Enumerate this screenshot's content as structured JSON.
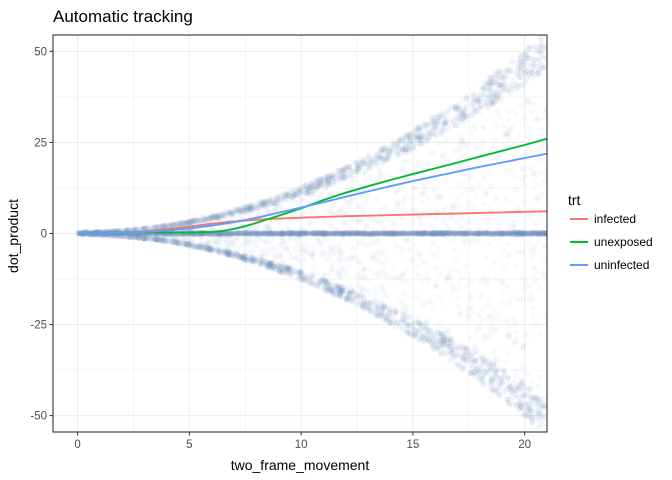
{
  "chart_data": {
    "type": "scatter",
    "title": "Automatic tracking",
    "xlabel": "two_frame_movement",
    "ylabel": "dot_product",
    "xlim": [
      -1.1,
      21
    ],
    "ylim": [
      -54.5,
      54.5
    ],
    "x_ticks": [
      0,
      5,
      10,
      15,
      20
    ],
    "y_ticks": [
      -50,
      -25,
      0,
      25,
      50
    ],
    "x_tick_labels": [
      "0",
      "5",
      "10",
      "15",
      "20"
    ],
    "y_tick_labels": [
      "-50",
      "-25",
      "0",
      "25",
      "50"
    ],
    "grid": true,
    "legend_position": "right",
    "legend_title": "trt",
    "scatter_note": "dense semi-transparent points spread within approximately +/- 0.125*x^2, plus a dense band along y = 0",
    "series": [
      {
        "name": "infected",
        "color": "#F8766D",
        "x": [
          0,
          1,
          2,
          3,
          4,
          5,
          6,
          7,
          8,
          9,
          10,
          11,
          12,
          13,
          14,
          15,
          16,
          17,
          18,
          19,
          20,
          21
        ],
        "y": [
          0,
          0.05,
          0.2,
          0.6,
          1.2,
          1.9,
          2.7,
          3.3,
          3.8,
          4.1,
          4.35,
          4.55,
          4.75,
          4.9,
          5.05,
          5.2,
          5.35,
          5.5,
          5.65,
          5.8,
          5.95,
          6.1
        ]
      },
      {
        "name": "unexposed",
        "color": "#00BA38",
        "x": [
          0,
          1,
          2,
          3,
          4,
          5,
          6,
          6.5,
          7,
          7.5,
          8,
          9,
          10,
          11,
          12,
          13,
          14,
          15,
          16,
          17,
          18,
          19,
          20,
          21
        ],
        "y": [
          0,
          0.1,
          0.2,
          0.3,
          0.3,
          0.3,
          0.4,
          0.7,
          1.3,
          2.0,
          2.9,
          4.9,
          6.9,
          9.2,
          11.2,
          13.0,
          14.7,
          16.3,
          17.9,
          19.5,
          21.1,
          22.7,
          24.3,
          26.0
        ]
      },
      {
        "name": "uninfected",
        "color": "#619CFF",
        "x": [
          0,
          1,
          2,
          3,
          4,
          5,
          6,
          7,
          8,
          9,
          10,
          11,
          12,
          13,
          14,
          15,
          16,
          17,
          18,
          19,
          20,
          21
        ],
        "y": [
          0,
          0.1,
          0.2,
          0.4,
          0.8,
          1.4,
          2.2,
          3.1,
          4.3,
          5.7,
          7.1,
          8.6,
          10.1,
          11.6,
          13.0,
          14.4,
          15.7,
          17.0,
          18.3,
          19.5,
          20.7,
          21.9
        ]
      }
    ]
  }
}
